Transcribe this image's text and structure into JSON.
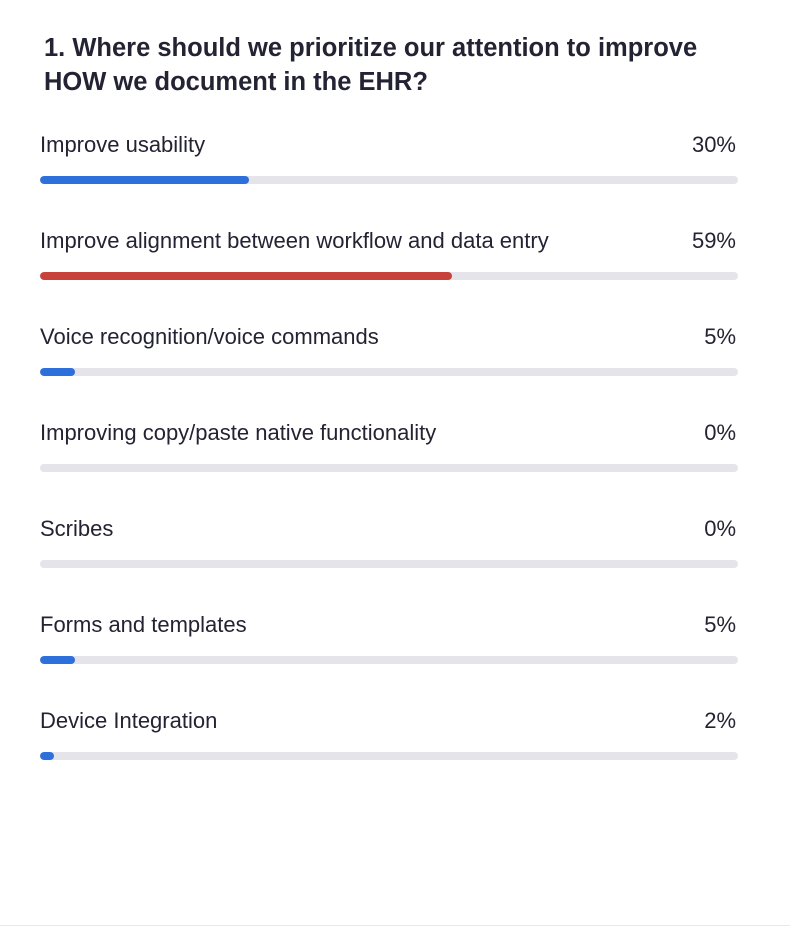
{
  "poll": {
    "question": "1. Where should we prioritize our attention to improve HOW we document in the EHR?",
    "colors": {
      "default_bar": "#2d6fdb",
      "highlight_bar": "#c8413b",
      "track": "#e4e4ea"
    },
    "options": [
      {
        "label": "Improve usability",
        "percent_text": "30%",
        "percent": 30,
        "highlighted": false
      },
      {
        "label": "Improve alignment between workflow and data entry",
        "percent_text": "59%",
        "percent": 59,
        "highlighted": true
      },
      {
        "label": "Voice recognition/voice commands",
        "percent_text": "5%",
        "percent": 5,
        "highlighted": false
      },
      {
        "label": "Improving copy/paste native functionality",
        "percent_text": "0%",
        "percent": 0,
        "highlighted": false
      },
      {
        "label": "Scribes",
        "percent_text": "0%",
        "percent": 0,
        "highlighted": false
      },
      {
        "label": "Forms and templates",
        "percent_text": "5%",
        "percent": 5,
        "highlighted": false
      },
      {
        "label": "Device Integration",
        "percent_text": "2%",
        "percent": 2,
        "highlighted": false
      }
    ]
  }
}
